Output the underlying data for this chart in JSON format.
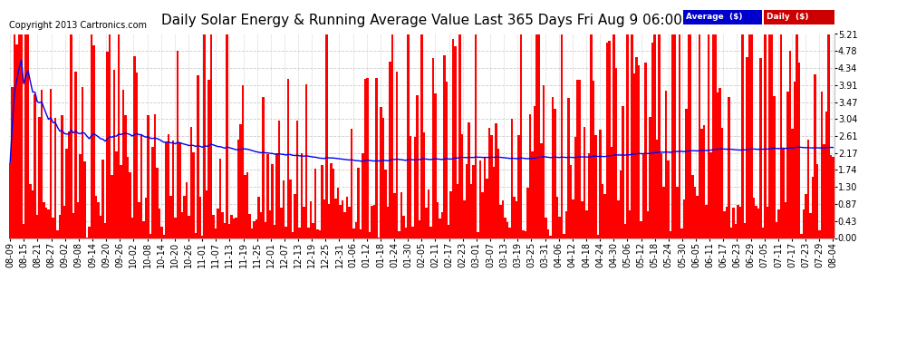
{
  "title": "Daily Solar Energy & Running Average Value Last 365 Days Fri Aug 9 06:00",
  "copyright": "Copyright 2013 Cartronics.com",
  "ylabel_right": [
    "0.00",
    "0.43",
    "0.87",
    "1.30",
    "1.74",
    "2.17",
    "2.61",
    "3.04",
    "3.47",
    "3.91",
    "4.34",
    "4.78",
    "5.21"
  ],
  "ymax": 5.21,
  "ymin": 0.0,
  "bar_color": "#FF0000",
  "avg_color": "#0000EE",
  "bg_color": "#FFFFFF",
  "grid_color": "#CCCCCC",
  "legend_avg_color": "#0000CC",
  "legend_daily_color": "#CC0000",
  "x_labels": [
    "08-09",
    "08-15",
    "08-21",
    "08-27",
    "09-02",
    "09-08",
    "09-14",
    "09-20",
    "09-26",
    "10-02",
    "10-08",
    "10-14",
    "10-20",
    "10-26",
    "11-01",
    "11-07",
    "11-13",
    "11-19",
    "11-25",
    "12-01",
    "12-07",
    "12-13",
    "12-19",
    "12-25",
    "12-31",
    "01-06",
    "01-12",
    "01-18",
    "01-24",
    "01-30",
    "02-05",
    "02-11",
    "02-17",
    "02-23",
    "03-01",
    "03-07",
    "03-13",
    "03-19",
    "03-25",
    "03-31",
    "04-06",
    "04-12",
    "04-18",
    "04-24",
    "04-30",
    "05-06",
    "05-12",
    "05-18",
    "05-24",
    "05-30",
    "06-05",
    "06-11",
    "06-17",
    "06-23",
    "06-29",
    "07-05",
    "07-11",
    "07-17",
    "07-23",
    "07-29",
    "08-04"
  ],
  "title_fontsize": 11,
  "copyright_fontsize": 7,
  "tick_fontsize": 7
}
